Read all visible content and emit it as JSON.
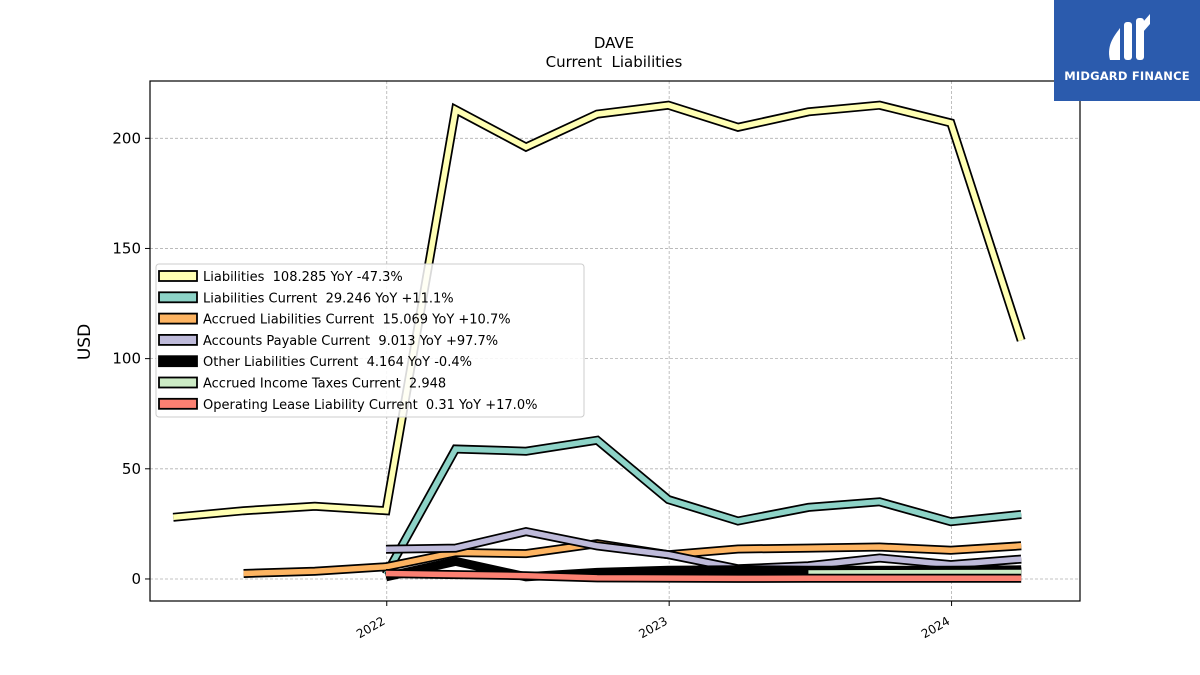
{
  "chart_data": {
    "type": "line",
    "title": "DAVE",
    "subtitle": "Current  Liabilities",
    "ylabel": "USD",
    "xlabel": "",
    "ylim": [
      -10,
      226
    ],
    "xlim": [
      "2021-03-01",
      "2024-06-15"
    ],
    "yticks": [
      0,
      50,
      100,
      150,
      200
    ],
    "xticks": [
      {
        "label": "2022",
        "date": "2022-01-01"
      },
      {
        "label": "2023",
        "date": "2023-01-01"
      },
      {
        "label": "2024",
        "date": "2024-01-01"
      }
    ],
    "grid": true,
    "legend_position": "center-left",
    "series": [
      {
        "name": "Liabilities  108.285 YoY -47.3%",
        "color": "#ffffb3",
        "points": [
          [
            "2021-03-31",
            28
          ],
          [
            "2021-06-30",
            31
          ],
          [
            "2021-09-30",
            33
          ],
          [
            "2021-12-31",
            31
          ],
          [
            "2022-03-31",
            213
          ],
          [
            "2022-06-30",
            196
          ],
          [
            "2022-09-30",
            211
          ],
          [
            "2022-12-31",
            215
          ],
          [
            "2023-03-31",
            205
          ],
          [
            "2023-06-30",
            212
          ],
          [
            "2023-09-30",
            215
          ],
          [
            "2023-12-31",
            207
          ],
          [
            "2024-03-31",
            108.285
          ]
        ]
      },
      {
        "name": "Liabilities Current  29.246 YoY +11.1%",
        "color": "#8dd3c7",
        "points": [
          [
            "2021-12-31",
            2
          ],
          [
            "2022-03-31",
            59
          ],
          [
            "2022-06-30",
            58
          ],
          [
            "2022-09-30",
            63
          ],
          [
            "2022-12-31",
            36
          ],
          [
            "2023-03-31",
            26.3
          ],
          [
            "2023-06-30",
            32.5
          ],
          [
            "2023-09-30",
            35
          ],
          [
            "2023-12-31",
            26
          ],
          [
            "2024-03-31",
            29.246
          ]
        ]
      },
      {
        "name": "Accrued Liabilities Current  15.069 YoY +10.7%",
        "color": "#fdb462",
        "points": [
          [
            "2021-06-30",
            2.5
          ],
          [
            "2021-09-30",
            3.5
          ],
          [
            "2021-12-31",
            5.5
          ],
          [
            "2022-03-31",
            12
          ],
          [
            "2022-06-30",
            11.5
          ],
          [
            "2022-09-30",
            16
          ],
          [
            "2022-12-31",
            11
          ],
          [
            "2023-03-31",
            13.6
          ],
          [
            "2023-06-30",
            14
          ],
          [
            "2023-09-30",
            14.5
          ],
          [
            "2023-12-31",
            13
          ],
          [
            "2024-03-31",
            15.069
          ]
        ]
      },
      {
        "name": "Accounts Payable Current  9.013 YoY +97.7%",
        "color": "#bebada",
        "points": [
          [
            "2021-12-31",
            13.5
          ],
          [
            "2022-03-31",
            14
          ],
          [
            "2022-06-30",
            21.5
          ],
          [
            "2022-09-30",
            15
          ],
          [
            "2022-12-31",
            11
          ],
          [
            "2023-03-31",
            4.6
          ],
          [
            "2023-06-30",
            6
          ],
          [
            "2023-09-30",
            9.5
          ],
          [
            "2023-12-31",
            6.5
          ],
          [
            "2024-03-31",
            9.013
          ]
        ]
      },
      {
        "name": "Other Liabilities Current  4.164 YoY -0.4%",
        "color": "#000000",
        "points": [
          [
            "2021-12-31",
            1
          ],
          [
            "2022-03-31",
            8
          ],
          [
            "2022-06-30",
            1
          ],
          [
            "2022-09-30",
            3
          ],
          [
            "2022-12-31",
            4
          ],
          [
            "2023-03-31",
            4.2
          ],
          [
            "2023-06-30",
            4
          ],
          [
            "2023-09-30",
            4
          ],
          [
            "2023-12-31",
            4
          ],
          [
            "2024-03-31",
            4.164
          ]
        ]
      },
      {
        "name": "Accrued Income Taxes Current  2.948",
        "color": "#ccebc5",
        "points": [
          [
            "2023-06-30",
            2.7
          ],
          [
            "2023-09-30",
            2.8
          ],
          [
            "2023-12-31",
            2.9
          ],
          [
            "2024-03-31",
            2.948
          ]
        ]
      },
      {
        "name": "Operating Lease Liability Current  0.31 YoY +17.0%",
        "color": "#fb8072",
        "points": [
          [
            "2021-12-31",
            2.5
          ],
          [
            "2022-03-31",
            2
          ],
          [
            "2022-06-30",
            1.5
          ],
          [
            "2022-09-30",
            0.5
          ],
          [
            "2022-12-31",
            0.4
          ],
          [
            "2023-03-31",
            0.27
          ],
          [
            "2023-06-30",
            0.3
          ],
          [
            "2023-09-30",
            0.3
          ],
          [
            "2023-12-31",
            0.3
          ],
          [
            "2024-03-31",
            0.31
          ]
        ]
      }
    ]
  },
  "logo": {
    "text": "MIDGARD FINANCE",
    "background": "#2b5bad"
  }
}
